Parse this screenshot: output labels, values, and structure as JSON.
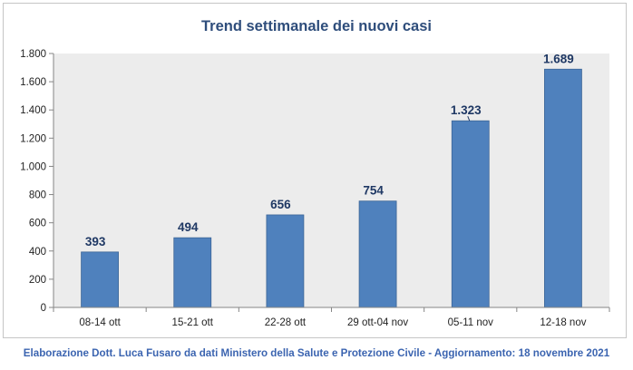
{
  "chart_data": {
    "type": "bar",
    "title": "Trend settimanale dei nuovi casi",
    "categories": [
      "08-14 ott",
      "15-21 ott",
      "22-28 ott",
      "29 ott-04 nov",
      "05-11 nov",
      "12-18 nov"
    ],
    "values": [
      393,
      494,
      656,
      754,
      1323,
      1689
    ],
    "value_labels": [
      "393",
      "494",
      "656",
      "754",
      "1.323",
      "1.689"
    ],
    "ylim": [
      0,
      1800
    ],
    "yticks": [
      0,
      200,
      400,
      600,
      800,
      1000,
      1200,
      1400,
      1600,
      1800
    ],
    "ytick_labels": [
      "0",
      "200",
      "400",
      "600",
      "800",
      "1.000",
      "1.200",
      "1.400",
      "1.600",
      "1.800"
    ],
    "xlabel": "",
    "ylabel": "",
    "grid": false,
    "bar_color": "#4f81bd",
    "plot_background": "#ececec"
  },
  "footer": "Elaborazione Dott. Luca Fusaro da dati Ministero della Salute e Protezione Civile - Aggiornamento: 18 novembre 2021"
}
